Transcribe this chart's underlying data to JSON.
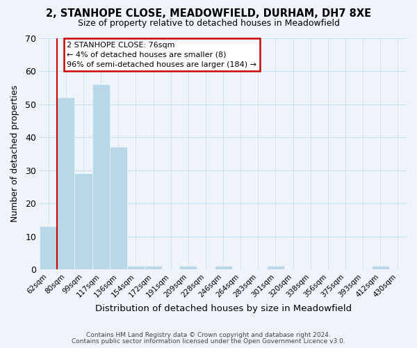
{
  "title": "2, STANHOPE CLOSE, MEADOWFIELD, DURHAM, DH7 8XE",
  "subtitle": "Size of property relative to detached houses in Meadowfield",
  "xlabel": "Distribution of detached houses by size in Meadowfield",
  "ylabel": "Number of detached properties",
  "bar_labels": [
    "62sqm",
    "80sqm",
    "99sqm",
    "117sqm",
    "136sqm",
    "154sqm",
    "172sqm",
    "191sqm",
    "209sqm",
    "228sqm",
    "246sqm",
    "264sqm",
    "283sqm",
    "301sqm",
    "320sqm",
    "338sqm",
    "356sqm",
    "375sqm",
    "393sqm",
    "412sqm",
    "430sqm"
  ],
  "bar_values": [
    13,
    52,
    29,
    56,
    37,
    1,
    1,
    0,
    1,
    0,
    1,
    0,
    0,
    1,
    0,
    0,
    0,
    0,
    0,
    1,
    0
  ],
  "bar_color": "#B8D8E8",
  "ylim": [
    0,
    70
  ],
  "yticks": [
    0,
    10,
    20,
    30,
    40,
    50,
    60,
    70
  ],
  "annotation_title": "2 STANHOPE CLOSE: 76sqm",
  "annotation_line1": "← 4% of detached houses are smaller (8)",
  "annotation_line2": "96% of semi-detached houses are larger (184) →",
  "annotation_box_facecolor": "#FFFFFF",
  "annotation_box_edgecolor": "#CC0000",
  "property_line_color": "#CC0000",
  "grid_color": "#C8DFF0",
  "background_color": "#EEF4FA",
  "footer1": "Contains HM Land Registry data © Crown copyright and database right 2024.",
  "footer2": "Contains public sector information licensed under the Open Government Licence v3.0."
}
